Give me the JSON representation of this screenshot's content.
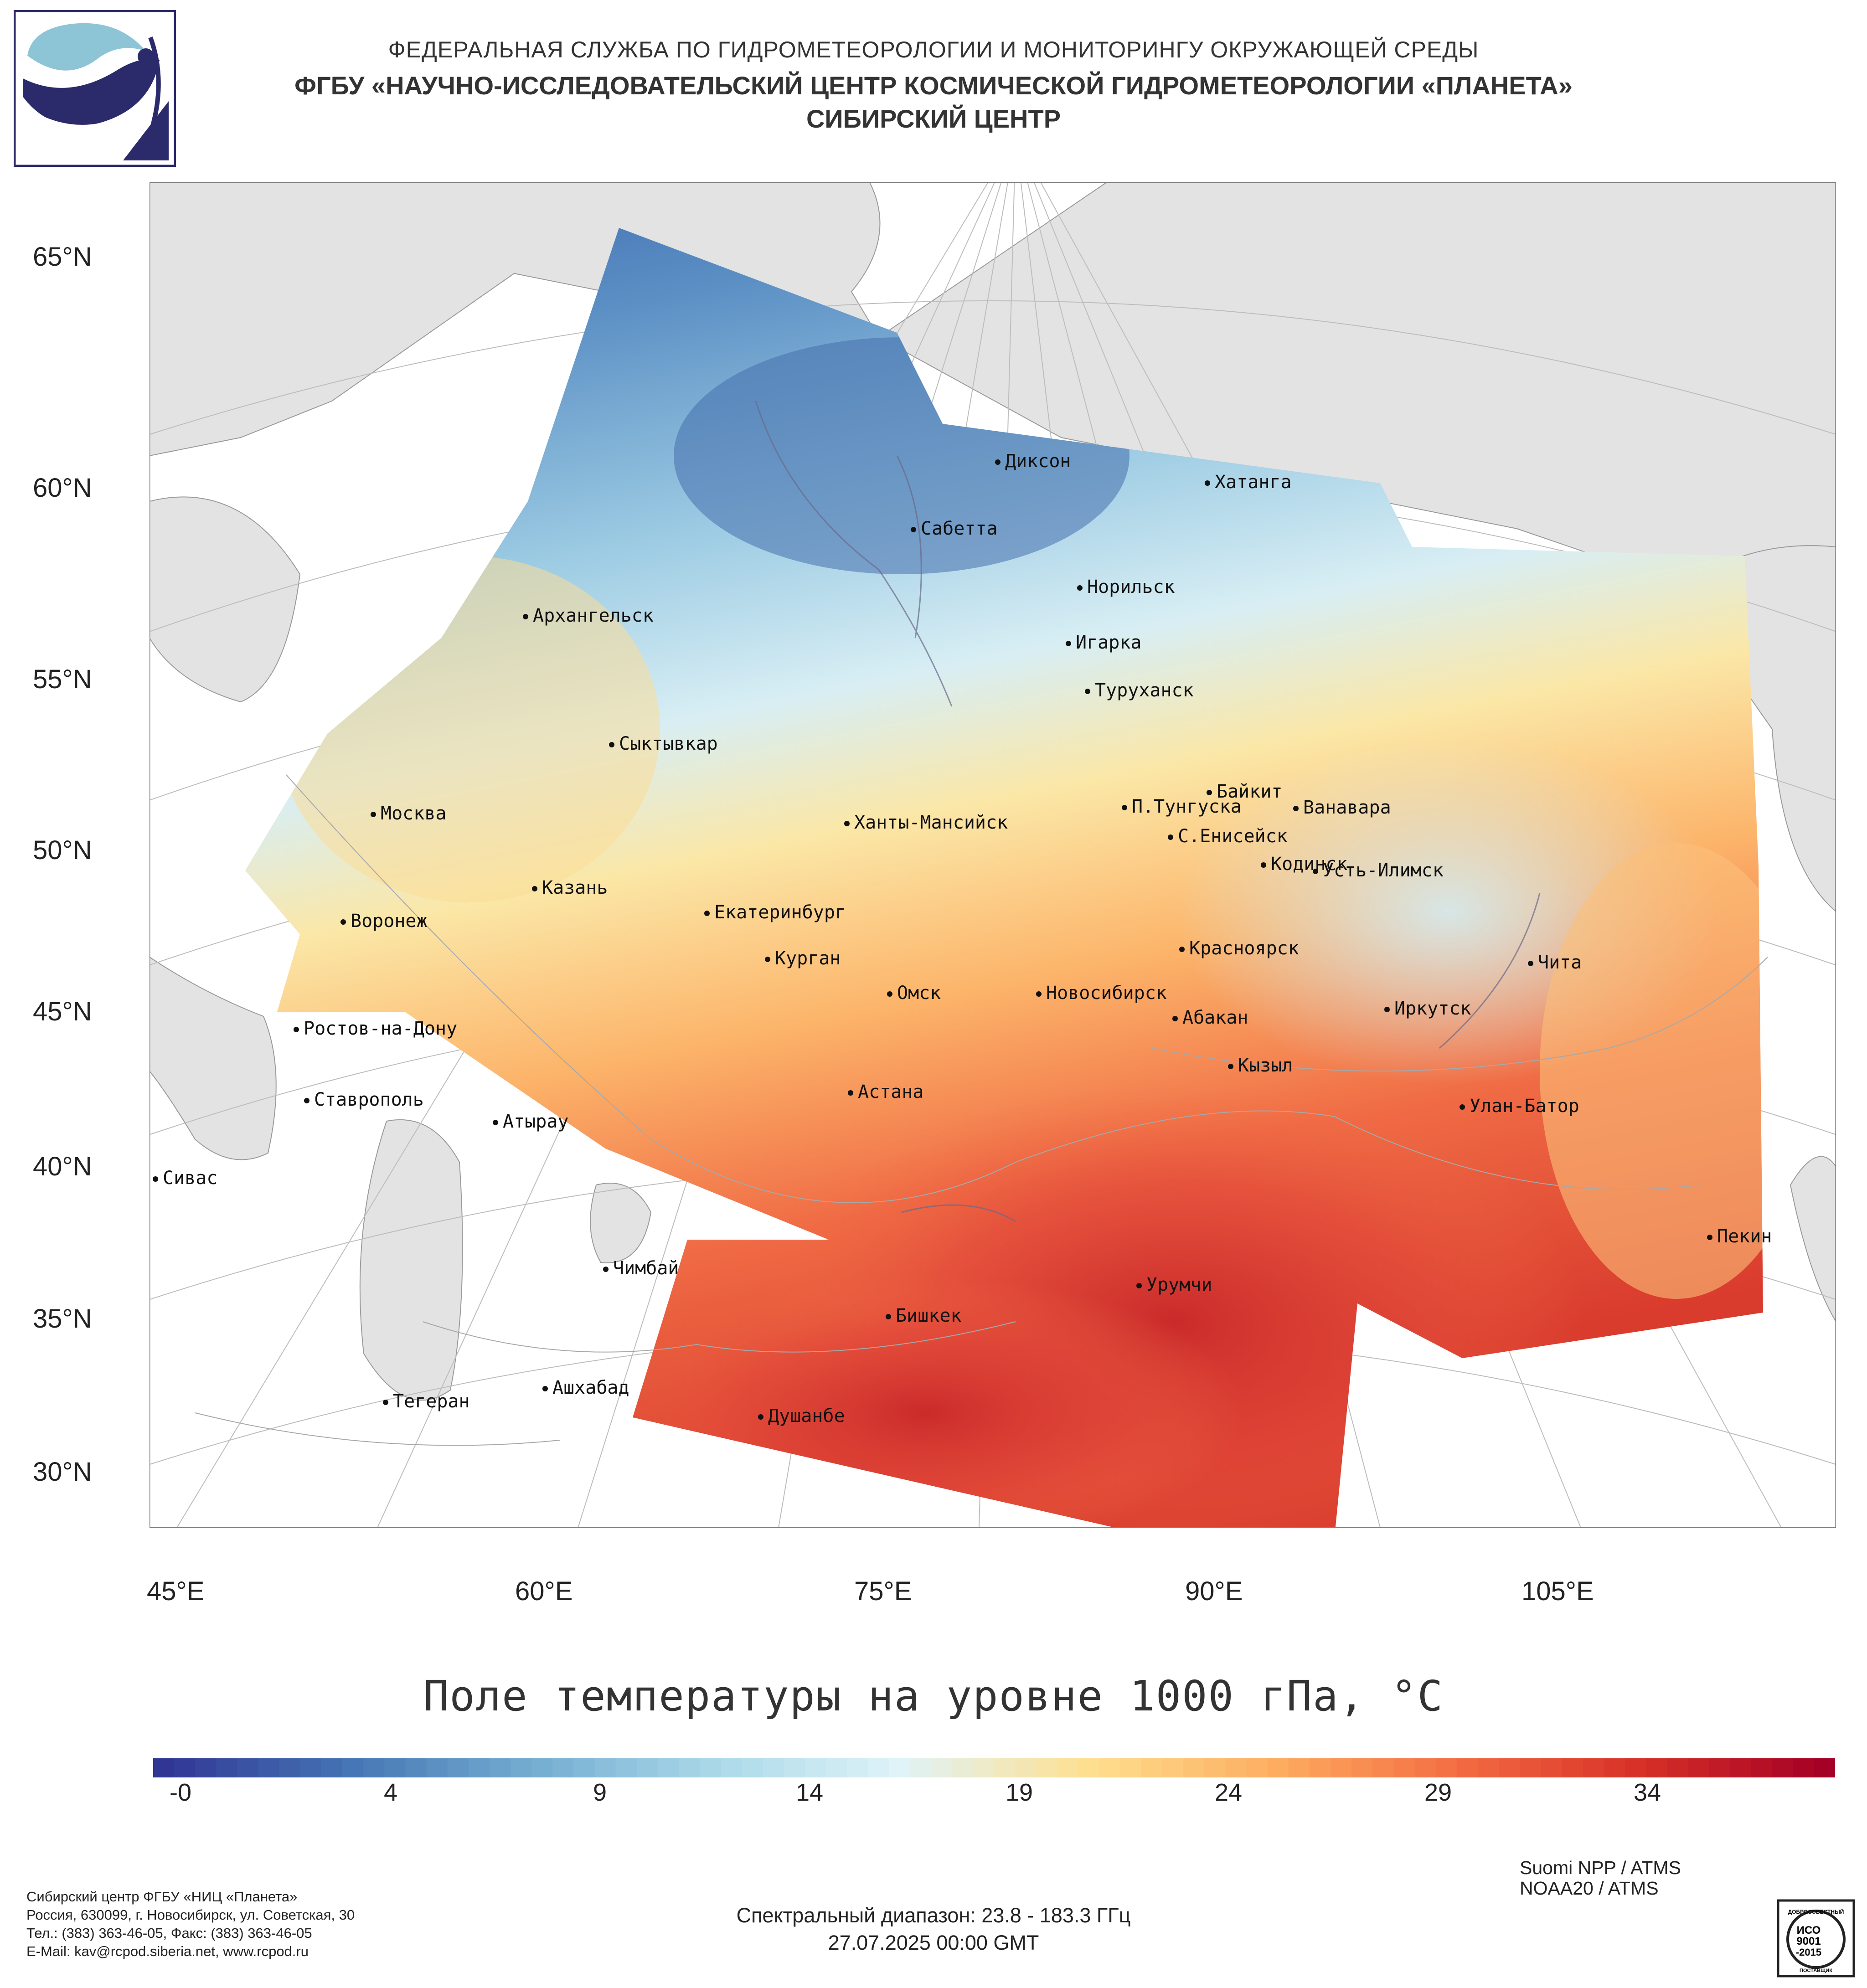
{
  "header": {
    "line1": "ФЕДЕРАЛЬНАЯ СЛУЖБА ПО ГИДРОМЕТЕОРОЛОГИИ И МОНИТОРИНГУ ОКРУЖАЮЩЕЙ СРЕДЫ",
    "line2": "ФГБУ «НАУЧНО-ИССЛЕДОВАТЕЛЬСКИЙ ЦЕНТР КОСМИЧЕСКОЙ ГИДРОМЕТЕОРОЛОГИИ «ПЛАНЕТА»",
    "line3": "СИБИРСКИЙ ЦЕНТР"
  },
  "map": {
    "lat_labels": [
      "65°N",
      "60°N",
      "55°N",
      "50°N",
      "45°N",
      "40°N",
      "35°N",
      "30°N"
    ],
    "lon_labels": [
      "45°E",
      "60°E",
      "75°E",
      "90°E",
      "105°E"
    ],
    "cities": [
      "Диксон",
      "Хатанга",
      "Сабетта",
      "Норильск",
      "Игарка",
      "Туруханск",
      "Архангельск",
      "Сыктывкар",
      "Москва",
      "Байкит",
      "П.Тунгуска",
      "Ванавара",
      "Ханты-Мансийск",
      "С.Енисейск",
      "Кодинск",
      "Усть-Илимск",
      "Казань",
      "Екатеринбург",
      "Воронеж",
      "Красноярск",
      "Чита",
      "Курган",
      "Омск",
      "Новосибирск",
      "Иркутск",
      "Абакан",
      "Ростов-на-Дону",
      "Кызыл",
      "Ставрополь",
      "Астана",
      "Улан-Батор",
      "Атырау",
      "Сивас",
      "Пекин",
      "Чимбай",
      "Урумчи",
      "Бишкек",
      "Ашхабад",
      "Тегеран",
      "Душанбе"
    ],
    "title": "Поле температуры на уровне 1000 гПа, °C"
  },
  "colorbar": {
    "ticks": [
      "-0",
      "4",
      "9",
      "14",
      "19",
      "24",
      "29",
      "34"
    ],
    "min": -1,
    "max": 38,
    "colors": [
      "#313695",
      "#4575b4",
      "#74add1",
      "#abd9e9",
      "#e0f3f8",
      "#fee090",
      "#fdae61",
      "#f46d43",
      "#d73027",
      "#a50026"
    ]
  },
  "footer": {
    "org_lines": [
      "Сибирский центр ФГБУ «НИЦ «Планета»",
      "Россия, 630099, г. Новосибирск, ул. Советская, 30",
      "Тел.: (383) 363-46-05, Факс: (383) 363-46-05",
      "E-Mail: kav@rcpod.siberia.net, www.rcpod.ru"
    ],
    "satellites": [
      "Suomi NPP / ATMS",
      "NOAA20 / ATMS"
    ],
    "spectral": "Спектральный диапазон: 23.8 - 183.3 ГГц",
    "datetime": "27.07.2025 00:00 GMT",
    "iso_badge": [
      "ДОБРОСОВЕСТНЫЙ",
      "ИСО",
      "9001",
      "-2015",
      "ПОСТАВЩИК"
    ]
  }
}
